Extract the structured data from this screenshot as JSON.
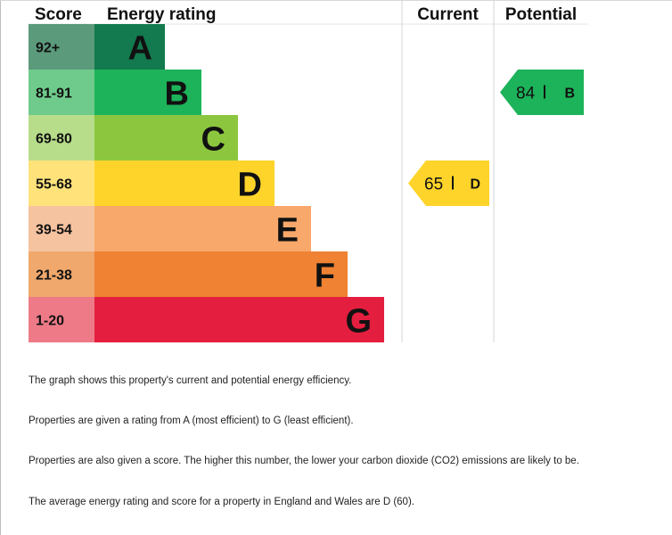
{
  "chart_data": {
    "type": "bar",
    "headers": {
      "score": "Score",
      "rating": "Energy rating",
      "current": "Current",
      "potential": "Potential"
    },
    "bands": [
      {
        "score": "92+",
        "letter": "A",
        "color": "#127a4e",
        "score_bg": "#5b9a7b"
      },
      {
        "score": "81-91",
        "letter": "B",
        "color": "#1db35a",
        "score_bg": "#6fcb8c"
      },
      {
        "score": "69-80",
        "letter": "C",
        "color": "#8cc63f",
        "score_bg": "#b7dd8a"
      },
      {
        "score": "55-68",
        "letter": "D",
        "color": "#ffd42a",
        "score_bg": "#ffe37a"
      },
      {
        "score": "39-54",
        "letter": "E",
        "color": "#f8a86a",
        "score_bg": "#f6c3a0"
      },
      {
        "score": "21-38",
        "letter": "F",
        "color": "#ef8233",
        "score_bg": "#f0a86c"
      },
      {
        "score": "1-20",
        "letter": "G",
        "color": "#e41e3f",
        "score_bg": "#ee7a88"
      }
    ],
    "current": {
      "value": 65,
      "letter": "D",
      "color": "#ffd42a"
    },
    "potential": {
      "value": 84,
      "letter": "B",
      "color": "#1db35a"
    }
  },
  "text": {
    "p1": "The graph shows this property's current and potential energy efficiency.",
    "p2": "Properties are given a rating from A (most efficient) to G (least efficient).",
    "p3": "Properties are also given a score. The higher this number, the lower your carbon dioxide (CO2) emissions are likely to be.",
    "p4": "The average energy rating and score for a property in England and Wales are D (60)."
  }
}
